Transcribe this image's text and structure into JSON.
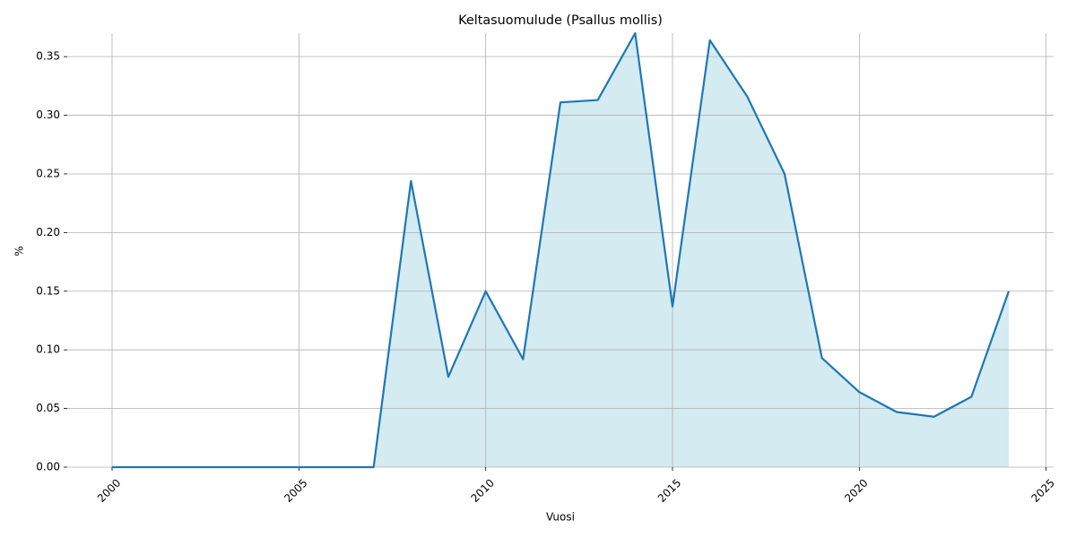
{
  "chart_data": {
    "type": "area",
    "title": "Keltasuomulude (Psallus mollis)",
    "x_label": "Vuosi",
    "y_label": "%",
    "x": [
      2000,
      2001,
      2002,
      2003,
      2004,
      2005,
      2006,
      2007,
      2008,
      2009,
      2010,
      2011,
      2012,
      2013,
      2014,
      2015,
      2016,
      2017,
      2018,
      2019,
      2020,
      2021,
      2022,
      2023,
      2024
    ],
    "values": [
      0,
      0,
      0,
      0,
      0,
      0,
      0,
      0,
      0.244,
      0.077,
      0.15,
      0.092,
      0.311,
      0.313,
      0.37,
      0.137,
      0.364,
      0.316,
      0.25,
      0.093,
      0.064,
      0.047,
      0.043,
      0.06,
      0.15
    ],
    "color": "#1f77b4",
    "fill_color": "#d4ebf2",
    "xlim": [
      1998.8,
      2025.2
    ],
    "xticks": [
      2000,
      2005,
      2010,
      2015,
      2020,
      2025
    ],
    "ylim": [
      0,
      0.37
    ],
    "yticks": [
      {
        "value": 0,
        "label": "0.00"
      },
      0.05,
      {
        "value": 0.1,
        "label": "0.10"
      },
      0.15,
      {
        "value": 0.2,
        "label": "0.20"
      },
      0.25,
      {
        "value": 0.3,
        "label": "0.30"
      },
      0.35
    ],
    "grid": true
  }
}
